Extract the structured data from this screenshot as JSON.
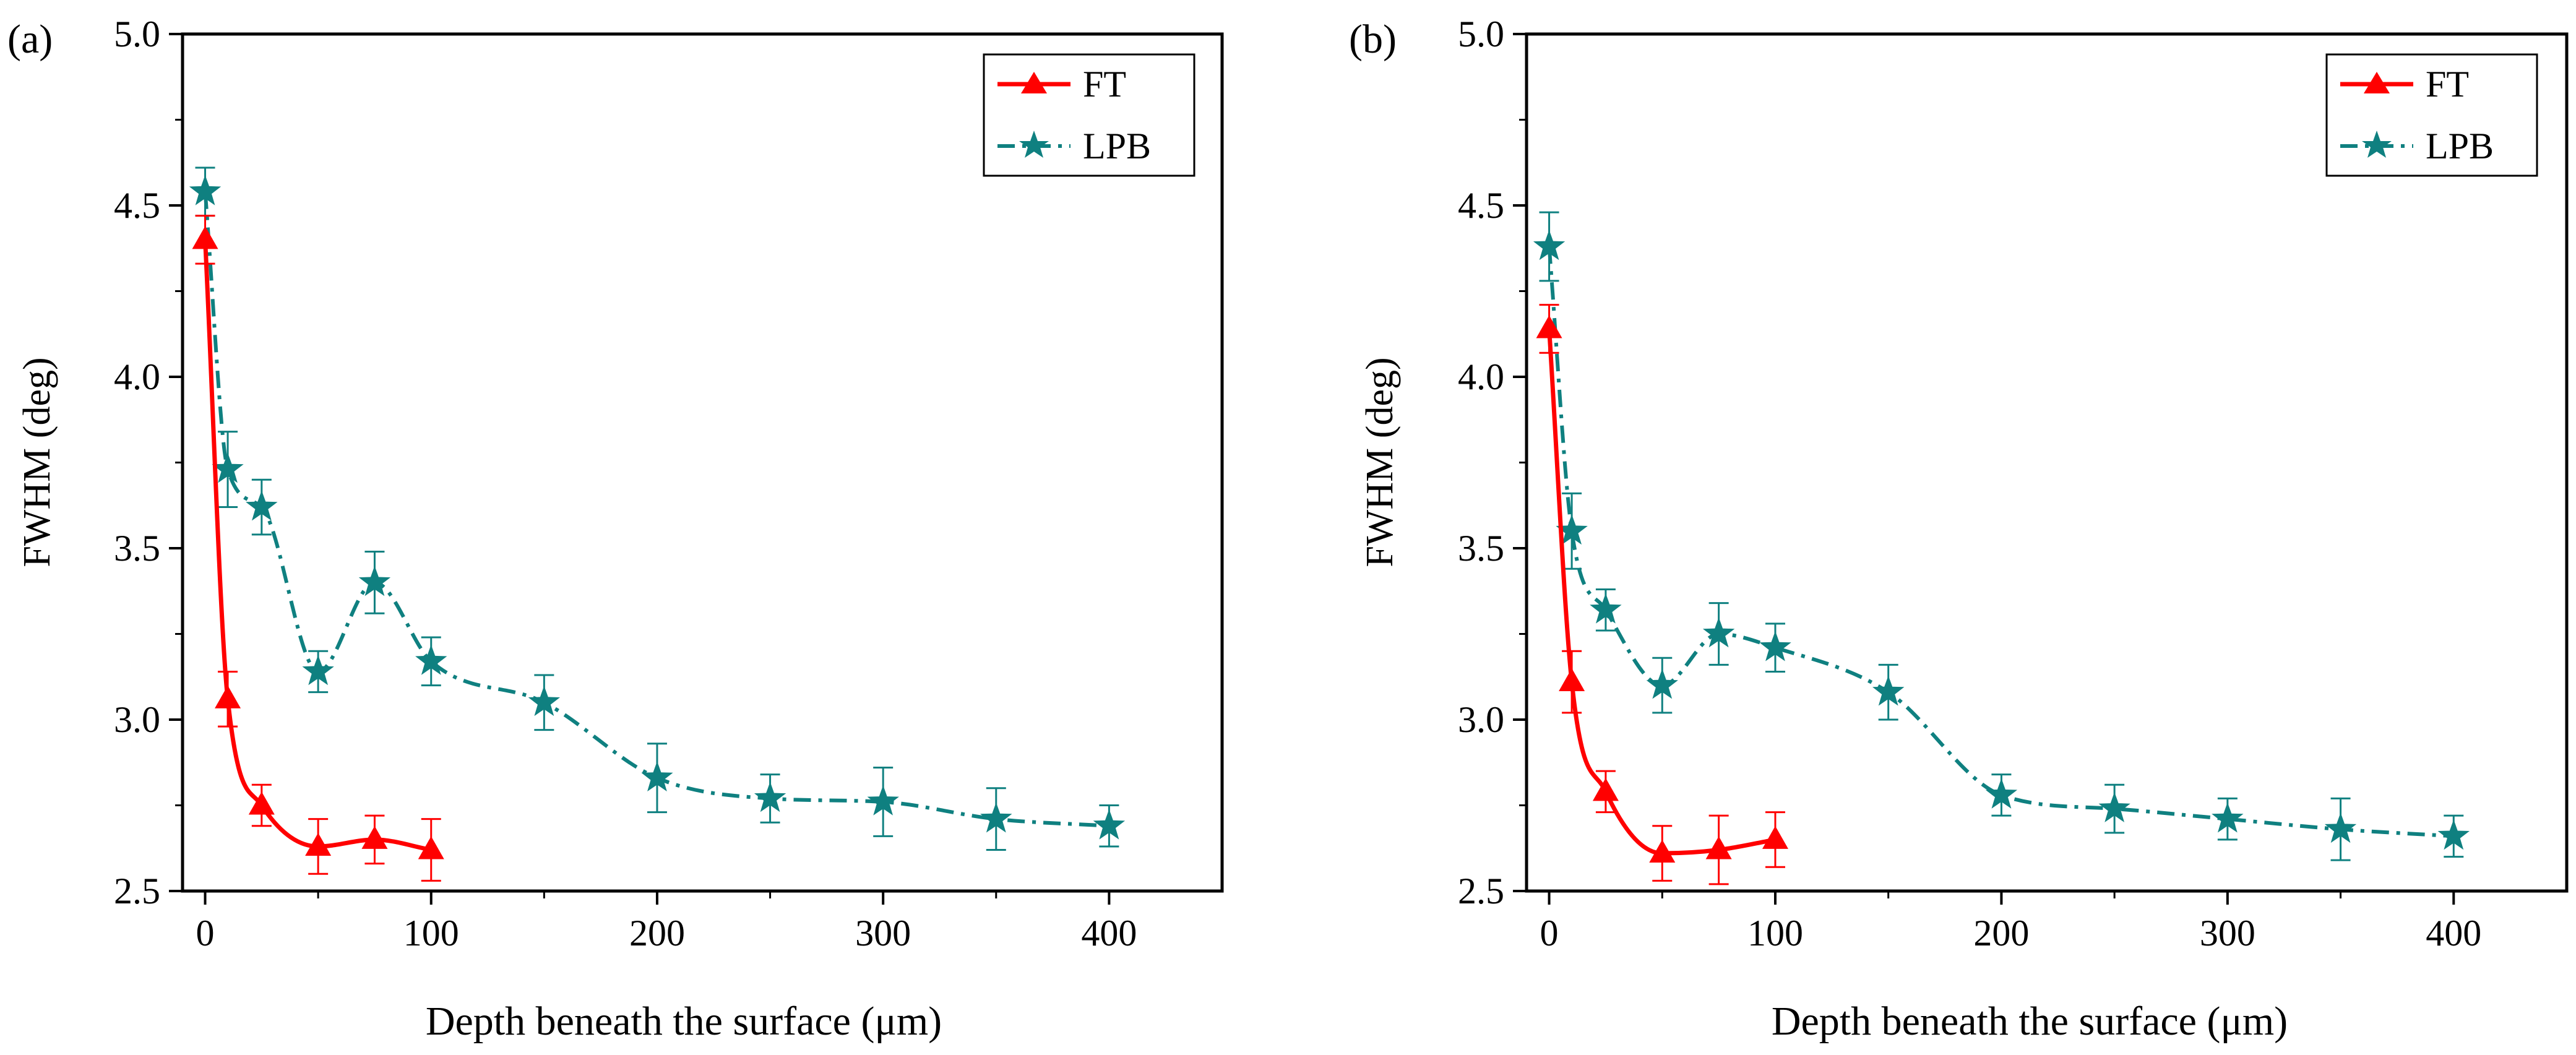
{
  "chart_data": [
    {
      "type": "line",
      "panel_label": "(a)",
      "xlabel": "Depth beneath the surface (μm)",
      "ylabel": "FWHM (deg)",
      "xlim": [
        -10,
        450
      ],
      "ylim": [
        2.5,
        5.0
      ],
      "xticks": [
        "0",
        "100",
        "200",
        "300",
        "400"
      ],
      "yticks": [
        "2.5",
        "3.0",
        "3.5",
        "4.0",
        "4.5",
        "5.0"
      ],
      "legend": {
        "position": "top-right"
      },
      "series": [
        {
          "name": "FT",
          "color": "#ff0000",
          "marker": "triangle",
          "line_style": "solid",
          "x": [
            0,
            10,
            25,
            50,
            75,
            100
          ],
          "y": [
            4.4,
            3.06,
            2.75,
            2.63,
            2.65,
            2.62
          ],
          "err": [
            0.07,
            0.08,
            0.06,
            0.08,
            0.07,
            0.09
          ]
        },
        {
          "name": "LPB",
          "color": "#0f8080",
          "marker": "star",
          "line_style": "dash-dot",
          "x": [
            0,
            10,
            25,
            50,
            75,
            100,
            150,
            200,
            250,
            300,
            350,
            400
          ],
          "y": [
            4.54,
            3.73,
            3.62,
            3.14,
            3.4,
            3.17,
            3.05,
            2.83,
            2.77,
            2.76,
            2.71,
            2.69
          ],
          "err": [
            0.07,
            0.11,
            0.08,
            0.06,
            0.09,
            0.07,
            0.08,
            0.1,
            0.07,
            0.1,
            0.09,
            0.06
          ]
        }
      ]
    },
    {
      "type": "line",
      "panel_label": "(b)",
      "xlabel": "Depth beneath the surface (μm)",
      "ylabel": "FWHM (deg)",
      "xlim": [
        -10,
        450
      ],
      "ylim": [
        2.5,
        5.0
      ],
      "xticks": [
        "0",
        "100",
        "200",
        "300",
        "400"
      ],
      "yticks": [
        "2.5",
        "3.0",
        "3.5",
        "4.0",
        "4.5",
        "5.0"
      ],
      "legend": {
        "position": "top-right"
      },
      "series": [
        {
          "name": "FT",
          "color": "#ff0000",
          "marker": "triangle",
          "line_style": "solid",
          "x": [
            0,
            10,
            25,
            50,
            75,
            100
          ],
          "y": [
            4.14,
            3.11,
            2.79,
            2.61,
            2.62,
            2.65
          ],
          "err": [
            0.07,
            0.09,
            0.06,
            0.08,
            0.1,
            0.08
          ]
        },
        {
          "name": "LPB",
          "color": "#0f8080",
          "marker": "star",
          "line_style": "dash-dot",
          "x": [
            0,
            10,
            25,
            50,
            75,
            100,
            150,
            200,
            250,
            300,
            350,
            400
          ],
          "y": [
            4.38,
            3.55,
            3.32,
            3.1,
            3.25,
            3.21,
            3.08,
            2.78,
            2.74,
            2.71,
            2.68,
            2.66
          ],
          "err": [
            0.1,
            0.11,
            0.06,
            0.08,
            0.09,
            0.07,
            0.08,
            0.06,
            0.07,
            0.06,
            0.09,
            0.06
          ]
        }
      ]
    }
  ]
}
